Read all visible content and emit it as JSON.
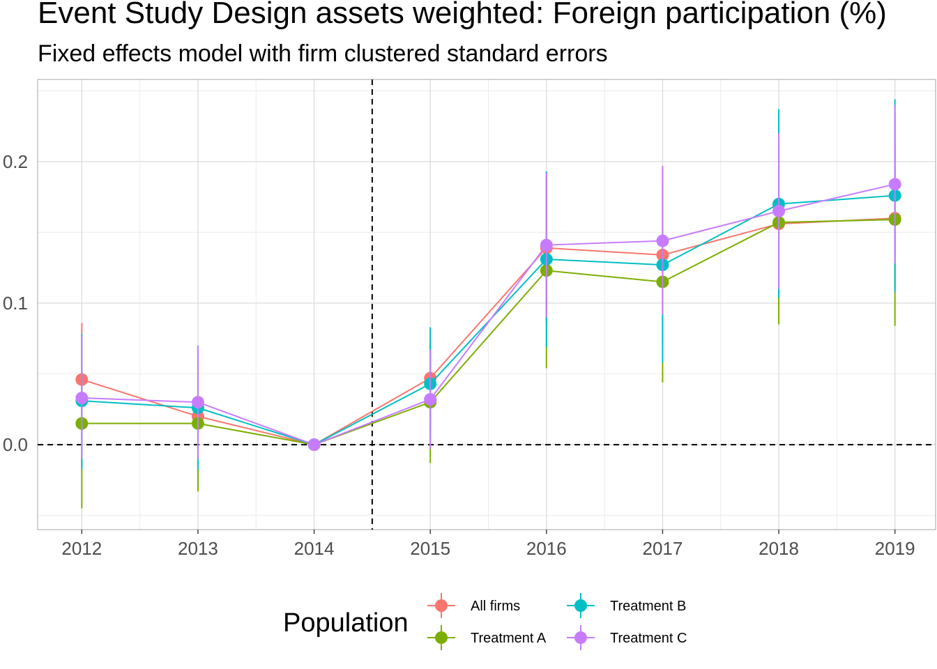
{
  "title": "Event Study Design assets weighted: Foreign participation (%)",
  "subtitle": "Fixed effects model with firm clustered standard errors",
  "chart_data": {
    "type": "line",
    "title": "Event Study Design assets weighted: Foreign participation (%)",
    "subtitle": "Fixed effects model with firm clustered standard errors",
    "xlabel": "",
    "ylabel": "",
    "x": [
      2012,
      2013,
      2014,
      2015,
      2016,
      2017,
      2018,
      2019
    ],
    "xlim": [
      2011.62,
      2019.35
    ],
    "ylim": [
      -0.06,
      0.258
    ],
    "yticks": [
      0.0,
      0.1,
      0.2
    ],
    "ytick_labels": [
      "0.0",
      "0.1",
      "0.2"
    ],
    "xtick_labels": [
      "2012",
      "2013",
      "2014",
      "2015",
      "2016",
      "2017",
      "2018",
      "2019"
    ],
    "grid": true,
    "reference_lines": {
      "horizontal": 0.0,
      "vertical": 2014.5,
      "style": "dashed"
    },
    "legend": {
      "title": "Population",
      "position": "bottom"
    },
    "series": [
      {
        "name": "All firms",
        "color": "#F8766D",
        "values": [
          0.046,
          0.02,
          0.0,
          0.047,
          0.139,
          0.134,
          0.156,
          0.16
        ],
        "lower": [
          0.006,
          -0.03,
          0.0,
          0.012,
          0.085,
          0.072,
          0.1,
          0.11
        ],
        "upper": [
          0.086,
          0.068,
          0.0,
          0.082,
          0.193,
          0.196,
          0.212,
          0.212
        ]
      },
      {
        "name": "Treatment A",
        "color": "#7CAE00",
        "values": [
          0.015,
          0.015,
          0.0,
          0.03,
          0.123,
          0.115,
          0.157,
          0.159
        ],
        "lower": [
          -0.045,
          -0.033,
          0.0,
          -0.013,
          0.054,
          0.044,
          0.085,
          0.084
        ],
        "upper": [
          0.075,
          0.062,
          0.0,
          0.072,
          0.19,
          0.186,
          0.228,
          0.234
        ]
      },
      {
        "name": "Treatment B",
        "color": "#00BFC4",
        "values": [
          0.031,
          0.026,
          0.0,
          0.043,
          0.131,
          0.127,
          0.17,
          0.176
        ],
        "lower": [
          -0.017,
          -0.018,
          0.0,
          0.003,
          0.069,
          0.058,
          0.104,
          0.108
        ],
        "upper": [
          0.078,
          0.07,
          0.0,
          0.083,
          0.193,
          0.196,
          0.237,
          0.244
        ]
      },
      {
        "name": "Treatment C",
        "color": "#C77CFF",
        "values": [
          0.033,
          0.03,
          0.0,
          0.032,
          0.141,
          0.144,
          0.165,
          0.184
        ],
        "lower": [
          -0.01,
          -0.01,
          0.0,
          -0.003,
          0.09,
          0.092,
          0.11,
          0.128
        ],
        "upper": [
          0.077,
          0.07,
          0.0,
          0.067,
          0.192,
          0.197,
          0.22,
          0.24
        ]
      }
    ]
  }
}
